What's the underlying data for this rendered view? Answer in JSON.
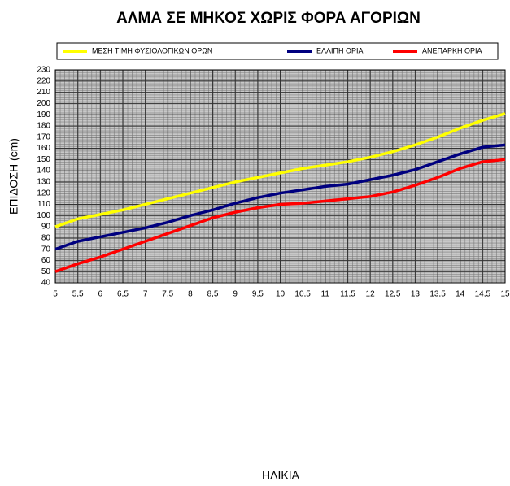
{
  "chart_data": {
    "type": "line",
    "title": "ΑΛΜΑ ΣΕ ΜΗΚΟΣ ΧΩΡΙΣ ΦΟΡΑ ΑΓΟΡΙΩΝ",
    "x_label": "ΗΛΙΚΙΑ",
    "y_label": "ΕΠΙΔΟΣΗ (cm)",
    "x": [
      5,
      5.5,
      6,
      6.5,
      7,
      7.5,
      8,
      8.5,
      9,
      9.5,
      10,
      10.5,
      11,
      11.5,
      12,
      12.5,
      13,
      13.5,
      14,
      14.5,
      15
    ],
    "series": [
      {
        "name": "ΜΕΣΗ ΤΙΜΗ ΦΥΣΙΟΛΟΓΙΚΩΝ ΟΡΩΝ",
        "color": "#ffff00",
        "values": [
          90,
          97,
          101,
          105,
          110,
          115,
          120,
          125,
          130,
          134,
          138,
          142,
          145,
          148,
          152,
          157,
          163,
          170,
          178,
          185,
          191
        ]
      },
      {
        "name": "ΕΛΛΙΠΗ ΟΡΙΑ",
        "color": "#00007f",
        "values": [
          70,
          77,
          81,
          85,
          89,
          94,
          100,
          105,
          111,
          116,
          120,
          123,
          126,
          128,
          132,
          136,
          141,
          148,
          155,
          161,
          163
        ]
      },
      {
        "name": "ΑΝΕΠΑΡΚΗ ΟΡΙΑ",
        "color": "#ff0000",
        "values": [
          50,
          57,
          63,
          70,
          77,
          84,
          91,
          98,
          103,
          107,
          110,
          111,
          113,
          115,
          117,
          121,
          127,
          134,
          142,
          148,
          150
        ]
      }
    ],
    "xlim": [
      5,
      15
    ],
    "xticks": [
      5,
      {
        "value": 5.5,
        "label": "5,5"
      },
      6,
      {
        "value": 6.5,
        "label": "6,5"
      },
      7,
      {
        "value": 7.5,
        "label": "7,5"
      },
      8,
      {
        "value": 8.5,
        "label": "8,5"
      },
      9,
      {
        "value": 9.5,
        "label": "9,5"
      },
      10,
      {
        "value": 10.5,
        "label": "10,5"
      },
      11,
      {
        "value": 11.5,
        "label": "11,5"
      },
      12,
      {
        "value": 12.5,
        "label": "12,5"
      },
      13,
      {
        "value": 13.5,
        "label": "13,5"
      },
      14,
      {
        "value": 14.5,
        "label": "14,5"
      },
      15
    ],
    "ylim": [
      40,
      230
    ],
    "yticks": [
      40,
      50,
      60,
      70,
      80,
      90,
      100,
      110,
      120,
      130,
      140,
      150,
      160,
      170,
      180,
      190,
      200,
      210,
      220,
      230
    ],
    "grid": true,
    "legend": "top"
  }
}
